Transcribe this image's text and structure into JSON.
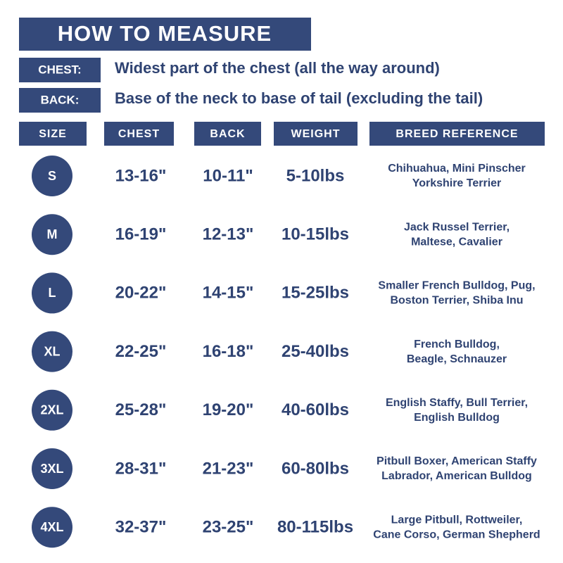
{
  "header": {
    "title": "HOW TO MEASURE"
  },
  "measures": [
    {
      "label": "CHEST:",
      "text": "Widest part of the chest (all the way around)"
    },
    {
      "label": "BACK:",
      "text": "Base of the neck to base of tail (excluding the tail)"
    }
  ],
  "table": {
    "columns": [
      "SIZE",
      "CHEST",
      "BACK",
      "WEIGHT",
      "BREED REFERENCE"
    ],
    "rows": [
      [
        "S",
        "13-16\"",
        "10-11\"",
        "5-10lbs",
        [
          "Chihuahua, Mini Pinscher",
          "Yorkshire Terrier"
        ]
      ],
      [
        "M",
        "16-19\"",
        "12-13\"",
        "10-15lbs",
        [
          "Jack Russel Terrier,",
          "Maltese, Cavalier"
        ]
      ],
      [
        "L",
        "20-22\"",
        "14-15\"",
        "15-25lbs",
        [
          "Smaller French Bulldog, Pug,",
          "Boston Terrier, Shiba Inu"
        ]
      ],
      [
        "XL",
        "22-25\"",
        "16-18\"",
        "25-40lbs",
        [
          "French Bulldog,",
          "Beagle, Schnauzer"
        ]
      ],
      [
        "2XL",
        "25-28\"",
        "19-20\"",
        "40-60lbs",
        [
          "English Staffy, Bull Terrier,",
          "English Bulldog"
        ]
      ],
      [
        "3XL",
        "28-31\"",
        "21-23\"",
        "60-80lbs",
        [
          "Pitbull Boxer, American Staffy",
          "Labrador, American Bulldog"
        ]
      ],
      [
        "4XL",
        "32-37\"",
        "23-25\"",
        "80-115lbs",
        [
          "Large Pitbull, Rottweiler,",
          "Cane Corso, German Shepherd"
        ]
      ]
    ]
  }
}
